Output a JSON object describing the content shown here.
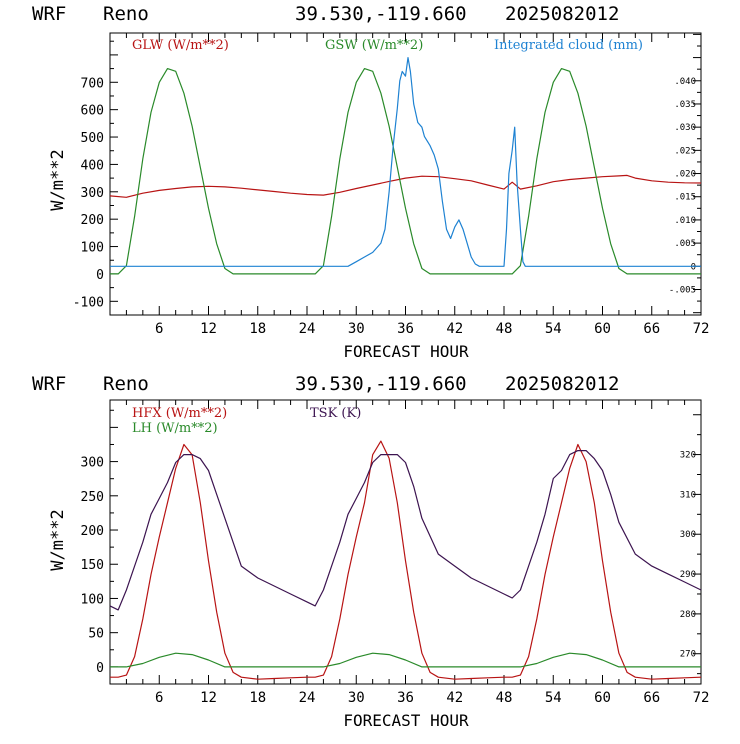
{
  "colors": {
    "red": "#b81414",
    "green": "#2a8a2a",
    "blue": "#1e82d2",
    "purple": "#3c1450",
    "axis": "#000000"
  },
  "chart_data": [
    {
      "type": "line",
      "header": {
        "model": "WRF",
        "site": "Reno",
        "coords": "39.530,-119.660",
        "run": "2025082012"
      },
      "xlabel": "FORECAST HOUR",
      "ylabel": "W/m**2",
      "xlim": [
        0,
        72
      ],
      "ylim": [
        -150,
        880
      ],
      "x_ticks": [
        "6",
        "12",
        "18",
        "24",
        "30",
        "36",
        "42",
        "48",
        "54",
        "60",
        "66",
        "72"
      ],
      "y_ticks": [
        "-100",
        "0",
        "100",
        "200",
        "300",
        "400",
        "500",
        "600",
        "700"
      ],
      "y2lim": [
        -0.0105,
        0.0503
      ],
      "y2_ticks": [
        ".040",
        ".035",
        ".030",
        ".025",
        ".020",
        ".015",
        ".010",
        ".005",
        "0",
        "-.005"
      ],
      "legend": [
        "GLW (W/m**2)",
        "GSW (W/m**2)",
        "Integrated cloud (mm)"
      ],
      "series": [
        {
          "name": "GLW (W/m**2)",
          "axis": "left",
          "x": [
            0,
            2,
            4,
            6,
            8,
            10,
            12,
            14,
            16,
            18,
            20,
            22,
            24,
            26,
            28,
            30,
            32,
            34,
            36,
            38,
            40,
            42,
            44,
            46,
            48,
            49,
            50,
            52,
            54,
            56,
            58,
            60,
            62,
            63,
            64,
            66,
            68,
            70,
            72
          ],
          "values": [
            285,
            280,
            295,
            305,
            312,
            318,
            320,
            318,
            313,
            307,
            301,
            295,
            290,
            288,
            298,
            312,
            325,
            338,
            350,
            357,
            355,
            348,
            340,
            325,
            310,
            335,
            310,
            322,
            337,
            345,
            350,
            355,
            358,
            360,
            350,
            340,
            335,
            333,
            332
          ]
        },
        {
          "name": "GSW (W/m**2)",
          "axis": "left",
          "x": [
            0,
            1,
            2,
            3,
            4,
            5,
            6,
            7,
            8,
            9,
            10,
            11,
            12,
            13,
            14,
            15,
            24,
            25,
            26,
            27,
            28,
            29,
            30,
            31,
            32,
            33,
            34,
            35,
            36,
            37,
            38,
            39,
            48,
            49,
            50,
            51,
            52,
            53,
            54,
            55,
            56,
            57,
            58,
            59,
            60,
            61,
            62,
            63,
            72
          ],
          "values": [
            0,
            0,
            30,
            210,
            420,
            590,
            700,
            750,
            740,
            660,
            540,
            390,
            240,
            110,
            20,
            0,
            0,
            0,
            30,
            210,
            420,
            590,
            700,
            750,
            740,
            660,
            540,
            390,
            240,
            110,
            20,
            0,
            0,
            0,
            30,
            210,
            420,
            590,
            700,
            750,
            740,
            660,
            540,
            390,
            240,
            110,
            20,
            0,
            0
          ]
        },
        {
          "name": "Integrated cloud (mm)",
          "axis": "right",
          "x": [
            0,
            29,
            30,
            31,
            32,
            33,
            33.5,
            34,
            34.5,
            35,
            35.3,
            35.6,
            36,
            36.3,
            36.6,
            37,
            37.5,
            38,
            38.3,
            39,
            39.5,
            40,
            40.5,
            41,
            41.5,
            42,
            42.5,
            43,
            43.5,
            44,
            44.5,
            45,
            48,
            48.3,
            48.6,
            49,
            49.3,
            49.6,
            50,
            50.3,
            50.6,
            72
          ],
          "values": [
            0,
            0,
            0.001,
            0.002,
            0.003,
            0.005,
            0.008,
            0.016,
            0.026,
            0.034,
            0.04,
            0.042,
            0.041,
            0.045,
            0.042,
            0.035,
            0.031,
            0.03,
            0.028,
            0.026,
            0.024,
            0.021,
            0.014,
            0.008,
            0.006,
            0.0085,
            0.01,
            0.008,
            0.005,
            0.002,
            0.0005,
            0,
            0,
            0.008,
            0.02,
            0.025,
            0.03,
            0.018,
            0.008,
            0.001,
            0,
            0
          ]
        }
      ]
    },
    {
      "type": "line",
      "header": {
        "model": "WRF",
        "site": "Reno",
        "coords": "39.530,-119.660",
        "run": "2025082012"
      },
      "xlabel": "FORECAST HOUR",
      "ylabel": "W/m**2",
      "xlim": [
        0,
        72
      ],
      "ylim": [
        -25,
        390
      ],
      "x_ticks": [
        "6",
        "12",
        "18",
        "24",
        "30",
        "36",
        "42",
        "48",
        "54",
        "60",
        "66",
        "72"
      ],
      "y_ticks": [
        "0",
        "50",
        "100",
        "150",
        "200",
        "250",
        "300"
      ],
      "y2lim": [
        262.4,
        333.7
      ],
      "y2_ticks": [
        "320",
        "310",
        "300",
        "290",
        "280",
        "270"
      ],
      "legend": [
        "HFX (W/m**2)",
        "LH  (W/m**2)",
        "TSK (K)"
      ],
      "series": [
        {
          "name": "HFX (W/m**2)",
          "axis": "left",
          "x": [
            0,
            1,
            2,
            3,
            4,
            5,
            6,
            7,
            8,
            9,
            10,
            11,
            12,
            13,
            14,
            15,
            16,
            18,
            20,
            22,
            24,
            25,
            26,
            27,
            28,
            29,
            30,
            31,
            32,
            33,
            34,
            35,
            36,
            37,
            38,
            39,
            40,
            42,
            44,
            46,
            48,
            49,
            50,
            51,
            52,
            53,
            54,
            55,
            56,
            57,
            58,
            59,
            60,
            61,
            62,
            63,
            64,
            66,
            68,
            70,
            72
          ],
          "values": [
            -15,
            -15,
            -12,
            15,
            70,
            135,
            190,
            240,
            290,
            325,
            310,
            240,
            155,
            80,
            20,
            -8,
            -15,
            -18,
            -17,
            -16,
            -15,
            -15,
            -12,
            15,
            70,
            135,
            190,
            240,
            310,
            330,
            305,
            240,
            155,
            80,
            20,
            -8,
            -15,
            -18,
            -17,
            -16,
            -15,
            -15,
            -12,
            15,
            70,
            135,
            190,
            240,
            290,
            325,
            300,
            240,
            155,
            80,
            20,
            -8,
            -15,
            -18,
            -17,
            -16,
            -15
          ]
        },
        {
          "name": "LH  (W/m**2)",
          "axis": "left",
          "x": [
            0,
            2,
            4,
            6,
            8,
            10,
            12,
            14,
            24,
            26,
            28,
            30,
            32,
            34,
            36,
            38,
            48,
            50,
            52,
            54,
            56,
            58,
            60,
            62,
            72
          ],
          "values": [
            0,
            0,
            5,
            14,
            20,
            18,
            10,
            0,
            0,
            0,
            5,
            14,
            20,
            18,
            10,
            0,
            0,
            0,
            5,
            14,
            20,
            18,
            10,
            0,
            0
          ]
        },
        {
          "name": "TSK (K)",
          "axis": "right",
          "x": [
            0,
            1,
            2,
            3,
            4,
            5,
            6,
            7,
            8,
            9,
            10,
            11,
            12,
            13,
            14,
            16,
            18,
            20,
            22,
            24,
            25,
            26,
            27,
            28,
            29,
            30,
            31,
            32,
            33,
            34,
            35,
            36,
            37,
            38,
            40,
            42,
            44,
            46,
            48,
            49,
            50,
            51,
            52,
            53,
            54,
            55,
            56,
            57,
            58,
            59,
            60,
            61,
            62,
            64,
            66,
            68,
            70,
            72
          ],
          "values": [
            282,
            281,
            286,
            292,
            298,
            305,
            309,
            313,
            318,
            320,
            320,
            319,
            316,
            310,
            304,
            292,
            289,
            287,
            285,
            283,
            282,
            286,
            292,
            298,
            305,
            309,
            313,
            318,
            320,
            320,
            320,
            318,
            312,
            304,
            295,
            292,
            289,
            287,
            285,
            284,
            286,
            292,
            298,
            305,
            314,
            316,
            320,
            321,
            321,
            319,
            316,
            310,
            303,
            295,
            292,
            290,
            288,
            286
          ]
        }
      ]
    }
  ]
}
